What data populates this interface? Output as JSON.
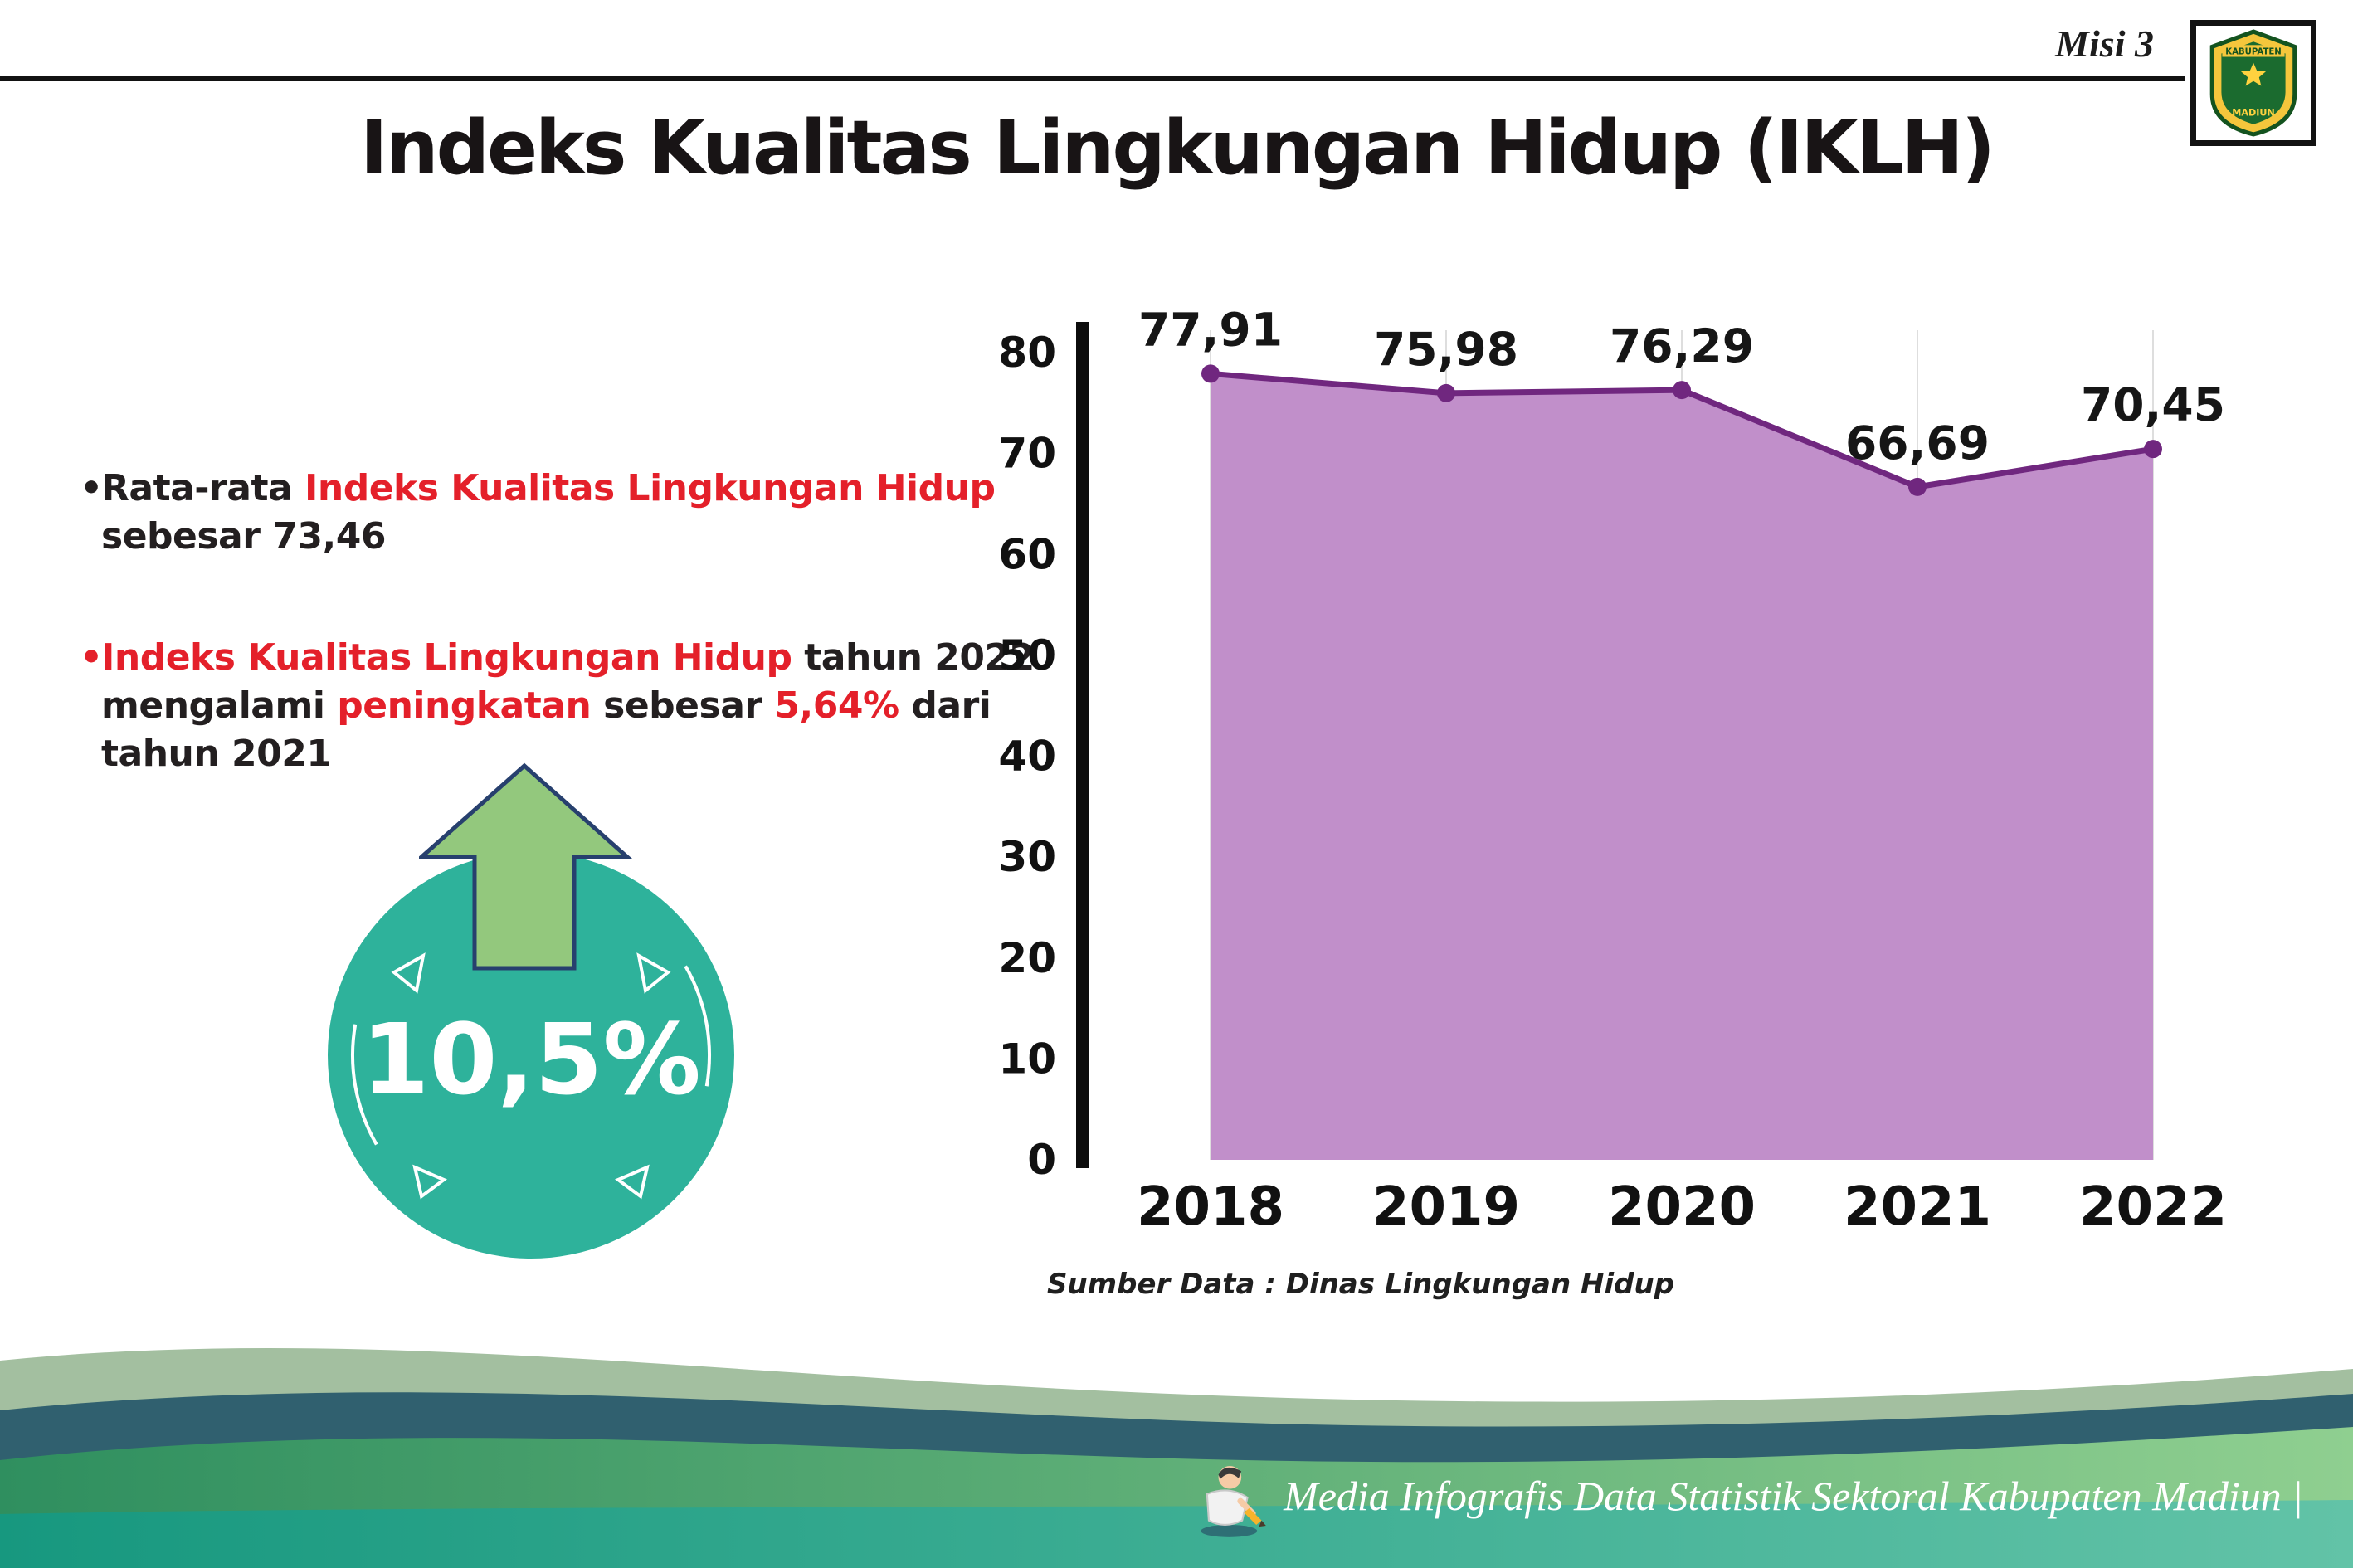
{
  "colors": {
    "red": "#e4202a",
    "ink": "#231f20",
    "teal": "#2eb29b",
    "arrow-green": "#93c87d",
    "arrow-outline": "#27406e",
    "footer-sage": "#a3bfa0",
    "footer-dark": "#30606f",
    "footer-teal": "#22a18c"
  },
  "header": {
    "misi_label": "Misi 3",
    "logo": {
      "top_text": "KABUPATEN",
      "bottom_text": "MADIUN"
    }
  },
  "title": "Indeks Kualitas Lingkungan Hidup (IKLH)",
  "bullets": [
    {
      "marker": "•",
      "lines": [
        [
          {
            "t": "Rata-rata ",
            "c": "ink"
          },
          {
            "t": "Indeks Kualitas Lingkungan Hidup",
            "c": "red"
          }
        ],
        [
          {
            "t": "sebesar 73,46",
            "c": "ink"
          }
        ]
      ]
    },
    {
      "marker": "•",
      "lines": [
        [
          {
            "t": "Indeks Kualitas Lingkungan Hidup",
            "c": "red"
          },
          {
            "t": " tahun 2022",
            "c": "ink"
          }
        ],
        [
          {
            "t": "mengalami ",
            "c": "ink"
          },
          {
            "t": "peningkatan",
            "c": "red"
          },
          {
            "t": " sebesar ",
            "c": "ink"
          },
          {
            "t": "5,64%",
            "c": "red"
          },
          {
            "t": " dari",
            "c": "ink"
          }
        ],
        [
          {
            "t": "tahun 2021",
            "c": "ink"
          }
        ]
      ]
    }
  ],
  "badge": {
    "value": "10,5%"
  },
  "chart_data": {
    "type": "area",
    "title": "",
    "categories": [
      "2018",
      "2019",
      "2020",
      "2021",
      "2022"
    ],
    "values": [
      77.91,
      75.98,
      76.29,
      66.69,
      70.45
    ],
    "value_labels": [
      "77,91",
      "75,98",
      "76,29",
      "66,69",
      "70,45"
    ],
    "ylim": [
      0,
      80
    ],
    "ytick_step": 10,
    "xlabel": "",
    "ylabel": "",
    "grid": "vertical-light",
    "legend": "none",
    "fill_color": "#c18fca",
    "line_color": "#70277f",
    "source": "Sumber Data : Dinas Lingkungan Hidup"
  },
  "footer": {
    "text": "Media Infografis Data Statistik Sektoral Kabupaten Madiun |"
  }
}
